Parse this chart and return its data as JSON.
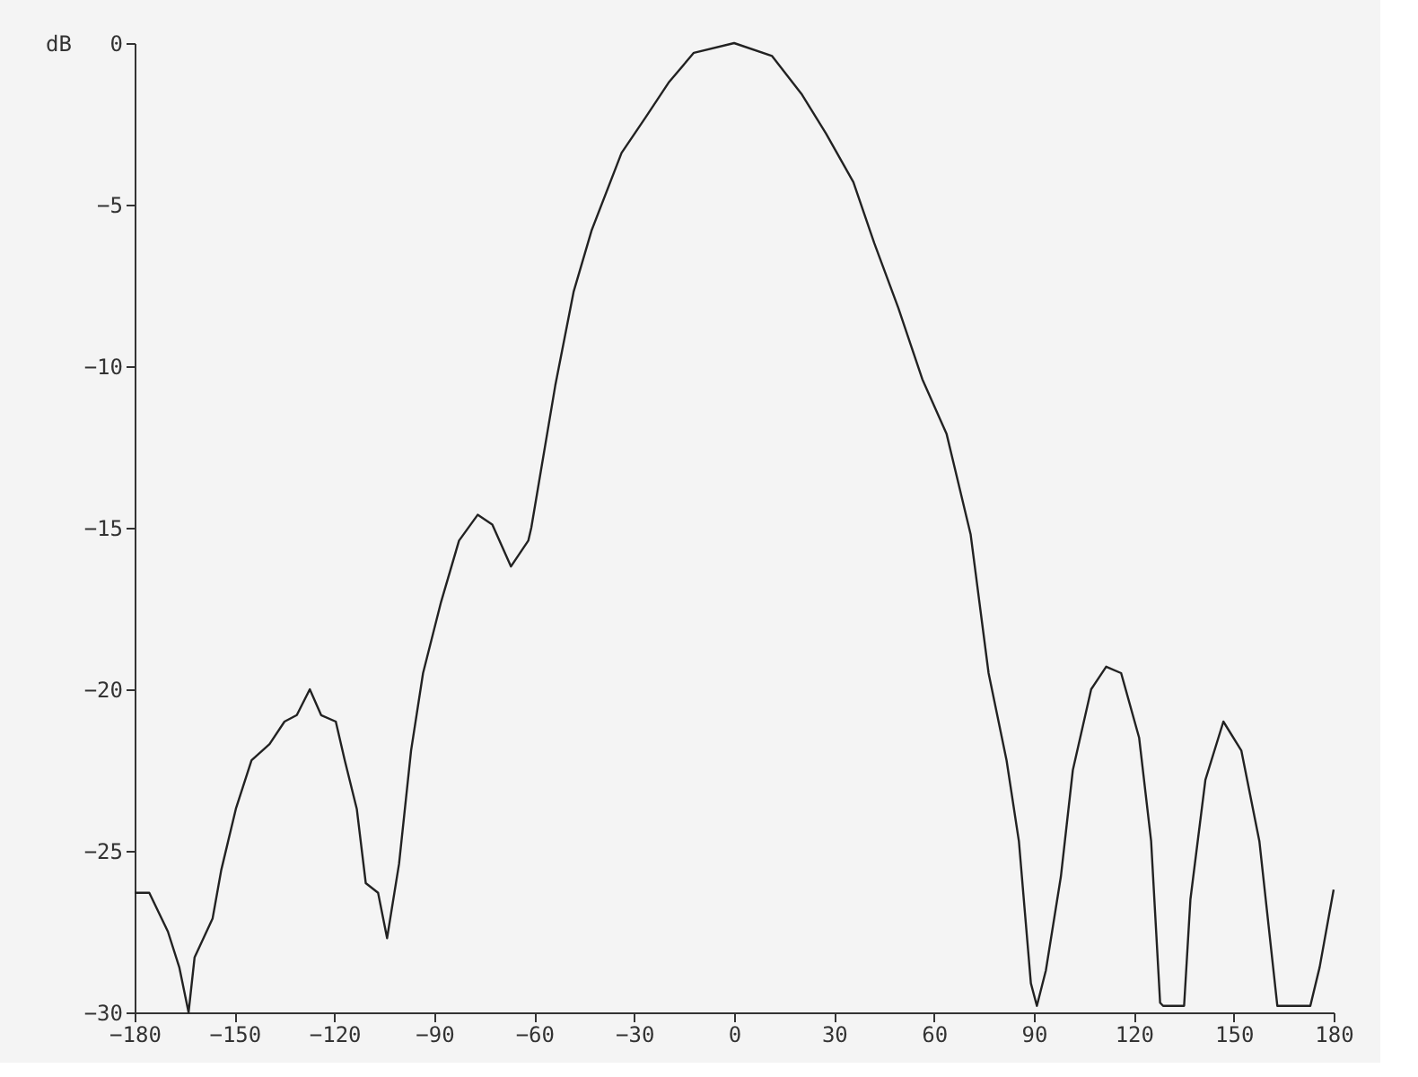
{
  "chart_data": {
    "type": "line",
    "ylabel": "dB",
    "xlim": [
      -180,
      180
    ],
    "ylim": [
      -30,
      0
    ],
    "xticks": [
      -180,
      -150,
      -120,
      -90,
      -60,
      -30,
      0,
      30,
      60,
      90,
      120,
      150,
      180
    ],
    "yticks": [
      -30,
      -25,
      -20,
      -15,
      -10,
      -5,
      0
    ],
    "grid": false,
    "marker": "none",
    "line_style": "solid",
    "series": [
      {
        "color": "#222222",
        "x": [
          -180,
          -175.6,
          -170,
          -166.6,
          -163.8,
          -162,
          -156.6,
          -154,
          -149.6,
          -144.9,
          -139.5,
          -135,
          -131.3,
          -127.4,
          -124,
          -119.6,
          -116.9,
          -113.3,
          -110.6,
          -106.9,
          -104.2,
          -100.6,
          -97,
          -93.4,
          -88,
          -82.6,
          -77,
          -72.6,
          -67,
          -61.8,
          -60.9,
          -53.7,
          -48.2,
          -42.8,
          -33.8,
          -26.6,
          -19.5,
          -12.1,
          0,
          11.4,
          20.4,
          27.6,
          35.8,
          42.1,
          49.3,
          56.5,
          63.8,
          71,
          76.4,
          81.8,
          85.5,
          89.1,
          90.9,
          93.6,
          98.1,
          101.7,
          107.2,
          111.7,
          116.2,
          121.6,
          125.2,
          127.9,
          128.8,
          135.1,
          137,
          141.5,
          146.9,
          152.3,
          157.7,
          163.1,
          173,
          175.8,
          180
        ],
        "values": [
          -26.3,
          -26.3,
          -27.5,
          -28.6,
          -30,
          -28.3,
          -27.1,
          -25.6,
          -23.7,
          -22.2,
          -21.7,
          -21,
          -20.8,
          -20,
          -20.8,
          -21,
          -22.2,
          -23.7,
          -26,
          -26.3,
          -27.7,
          -25.4,
          -21.9,
          -19.5,
          -17.3,
          -15.4,
          -14.6,
          -14.9,
          -16.2,
          -15.4,
          -15,
          -10.6,
          -7.7,
          -5.8,
          -3.4,
          -2.3,
          -1.2,
          -0.3,
          0,
          -0.4,
          -1.6,
          -2.8,
          -4.3,
          -6.2,
          -8.2,
          -10.4,
          -12.1,
          -15.2,
          -19.5,
          -22.2,
          -24.7,
          -29.1,
          -29.8,
          -28.7,
          -25.8,
          -22.5,
          -20,
          -19.3,
          -19.5,
          -21.5,
          -24.7,
          -29.7,
          -29.8,
          -29.8,
          -26.5,
          -22.8,
          -21,
          -21.9,
          -24.7,
          -29.8,
          -29.8,
          -28.6,
          -26.2
        ]
      }
    ]
  }
}
